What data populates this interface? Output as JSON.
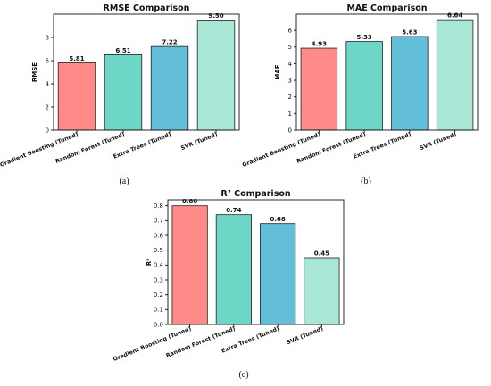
{
  "chart_data": [
    {
      "type": "bar",
      "title": "RMSE Comparison",
      "ylabel": "RMSE",
      "xlabel": "",
      "categories": [
        "Gradient Boosting (Tuned)",
        "Random Forest (Tuned)",
        "Extra Trees (Tuned)",
        "SVR (Tuned)"
      ],
      "values": [
        5.81,
        6.51,
        7.22,
        9.5
      ],
      "value_labels": [
        "5.81",
        "6.51",
        "7.22",
        "9.50"
      ],
      "ylim": [
        0,
        10
      ],
      "yticks": [
        "0",
        "2",
        "4",
        "6",
        "8"
      ],
      "panel_label": "(a)",
      "colors": [
        "#ff8a88",
        "#6ed6c6",
        "#63bfd9",
        "#a8e6d6"
      ]
    },
    {
      "type": "bar",
      "title": "MAE Comparison",
      "ylabel": "MAE",
      "xlabel": "",
      "categories": [
        "Gradient Boosting (Tuned)",
        "Random Forest (Tuned)",
        "Extra Trees (Tuned)",
        "SVR (Tuned)"
      ],
      "values": [
        4.93,
        5.33,
        5.63,
        6.64
      ],
      "value_labels": [
        "4.93",
        "5.33",
        "5.63",
        "6.64"
      ],
      "ylim": [
        0,
        6.97
      ],
      "yticks": [
        "0",
        "1",
        "2",
        "3",
        "4",
        "5",
        "6"
      ],
      "panel_label": "(b)",
      "colors": [
        "#ff8a88",
        "#6ed6c6",
        "#63bfd9",
        "#a8e6d6"
      ]
    },
    {
      "type": "bar",
      "title": "R² Comparison",
      "ylabel": "R²",
      "xlabel": "",
      "categories": [
        "Gradient Boosting (Tuned)",
        "Random Forest (Tuned)",
        "Extra Trees (Tuned)",
        "SVR (Tuned)"
      ],
      "values": [
        0.8,
        0.74,
        0.68,
        0.45
      ],
      "value_labels": [
        "0.80",
        "0.74",
        "0.68",
        "0.45"
      ],
      "ylim": [
        0,
        0.84
      ],
      "yticks": [
        "0.0",
        "0.1",
        "0.2",
        "0.3",
        "0.4",
        "0.5",
        "0.6",
        "0.7",
        "0.8"
      ],
      "panel_label": "(c)",
      "colors": [
        "#ff8a88",
        "#6ed6c6",
        "#63bfd9",
        "#a8e6d6"
      ]
    }
  ]
}
